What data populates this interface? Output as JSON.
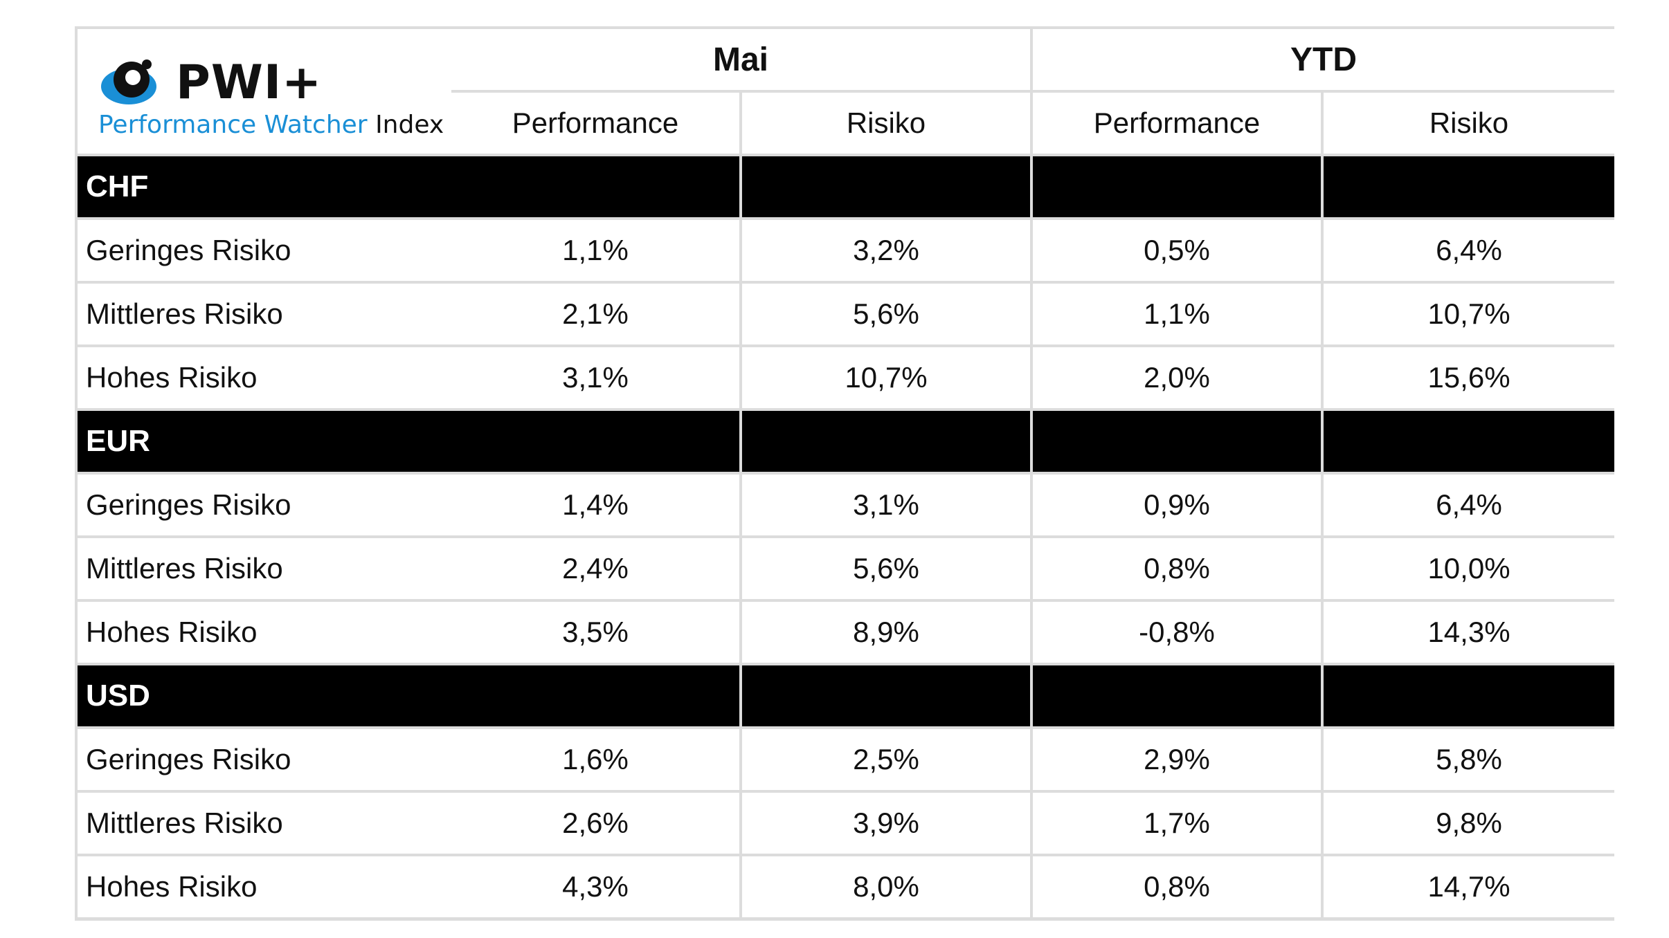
{
  "logo": {
    "name": "PWI+",
    "subtitle_colored": "Performance Watcher",
    "subtitle_dark": "Index",
    "accent_color": "#1a8fd6"
  },
  "header": {
    "groups": [
      "Mai",
      "YTD"
    ],
    "columns": [
      "Performance",
      "Risiko",
      "Performance",
      "Risiko"
    ]
  },
  "sections": [
    {
      "currency": "CHF",
      "rows": [
        {
          "label": "Geringes Risiko",
          "values": [
            "1,1%",
            "3,2%",
            "0,5%",
            "6,4%"
          ]
        },
        {
          "label": "Mittleres Risiko",
          "values": [
            "2,1%",
            "5,6%",
            "1,1%",
            "10,7%"
          ]
        },
        {
          "label": "Hohes Risiko",
          "values": [
            "3,1%",
            "10,7%",
            "2,0%",
            "15,6%"
          ]
        }
      ]
    },
    {
      "currency": "EUR",
      "rows": [
        {
          "label": "Geringes Risiko",
          "values": [
            "1,4%",
            "3,1%",
            "0,9%",
            "6,4%"
          ]
        },
        {
          "label": "Mittleres Risiko",
          "values": [
            "2,4%",
            "5,6%",
            "0,8%",
            "10,0%"
          ]
        },
        {
          "label": "Hohes Risiko",
          "values": [
            "3,5%",
            "8,9%",
            "-0,8%",
            "14,3%"
          ]
        }
      ]
    },
    {
      "currency": "USD",
      "rows": [
        {
          "label": "Geringes Risiko",
          "values": [
            "1,6%",
            "2,5%",
            "2,9%",
            "5,8%"
          ]
        },
        {
          "label": "Mittleres Risiko",
          "values": [
            "2,6%",
            "3,9%",
            "1,7%",
            "9,8%"
          ]
        },
        {
          "label": "Hohes Risiko",
          "values": [
            "4,3%",
            "8,0%",
            "0,8%",
            "14,7%"
          ]
        }
      ]
    }
  ],
  "chart_data": {
    "type": "table",
    "column_groups": [
      "Mai",
      "YTD"
    ],
    "columns": [
      "Performance",
      "Risiko",
      "Performance",
      "Risiko"
    ],
    "rows": [
      {
        "section": "CHF",
        "label": "Geringes Risiko",
        "values": [
          "1,1%",
          "3,2%",
          "0,5%",
          "6,4%"
        ]
      },
      {
        "section": "CHF",
        "label": "Mittleres Risiko",
        "values": [
          "2,1%",
          "5,6%",
          "1,1%",
          "10,7%"
        ]
      },
      {
        "section": "CHF",
        "label": "Hohes Risiko",
        "values": [
          "3,1%",
          "10,7%",
          "2,0%",
          "15,6%"
        ]
      },
      {
        "section": "EUR",
        "label": "Geringes Risiko",
        "values": [
          "1,4%",
          "3,1%",
          "0,9%",
          "6,4%"
        ]
      },
      {
        "section": "EUR",
        "label": "Mittleres Risiko",
        "values": [
          "2,4%",
          "5,6%",
          "0,8%",
          "10,0%"
        ]
      },
      {
        "section": "EUR",
        "label": "Hohes Risiko",
        "values": [
          "3,5%",
          "8,9%",
          "-0,8%",
          "14,3%"
        ]
      },
      {
        "section": "USD",
        "label": "Geringes Risiko",
        "values": [
          "1,6%",
          "2,5%",
          "2,9%",
          "5,8%"
        ]
      },
      {
        "section": "USD",
        "label": "Mittleres Risiko",
        "values": [
          "2,6%",
          "3,9%",
          "1,7%",
          "9,8%"
        ]
      },
      {
        "section": "USD",
        "label": "Hohes Risiko",
        "values": [
          "4,3%",
          "8,0%",
          "0,8%",
          "14,7%"
        ]
      }
    ]
  }
}
